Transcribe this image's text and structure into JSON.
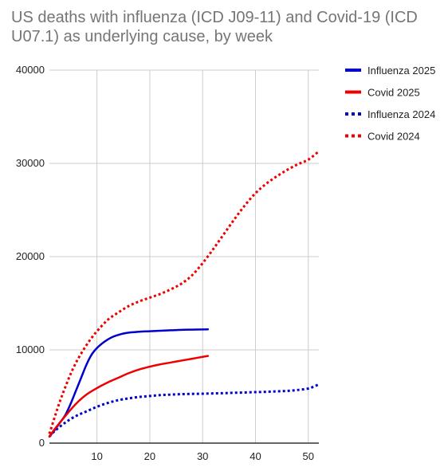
{
  "chart_data": {
    "type": "line",
    "title": "US deaths with influenza (ICD J09-11) and Covid-19 (ICD U07.1) as underlying cause, by week",
    "xlabel": "",
    "ylabel": "",
    "xlim": [
      1,
      52
    ],
    "ylim": [
      0,
      40000
    ],
    "x_ticks": [
      10,
      20,
      30,
      40,
      50
    ],
    "y_ticks": [
      0,
      10000,
      20000,
      30000,
      40000
    ],
    "grid": true,
    "legend_position": "right",
    "series": [
      {
        "name": "Influenza 2025",
        "color": "#0000cc",
        "style": "solid",
        "x": [
          1,
          2,
          3,
          4,
          5,
          6,
          7,
          8,
          9,
          10,
          11,
          12,
          13,
          14,
          15,
          16,
          17,
          18,
          20,
          22,
          24,
          26,
          28,
          30,
          31
        ],
        "y": [
          700,
          1400,
          2200,
          3000,
          4200,
          5600,
          7000,
          8400,
          9500,
          10200,
          10700,
          11100,
          11400,
          11600,
          11750,
          11850,
          11900,
          11950,
          12000,
          12050,
          12100,
          12150,
          12170,
          12190,
          12200
        ]
      },
      {
        "name": "Covid 2025",
        "color": "#ee0000",
        "style": "solid",
        "x": [
          1,
          2,
          4,
          6,
          8,
          10,
          12,
          14,
          16,
          18,
          20,
          22,
          24,
          26,
          28,
          30,
          31
        ],
        "y": [
          700,
          1500,
          2900,
          4200,
          5200,
          5900,
          6500,
          7000,
          7500,
          7900,
          8200,
          8450,
          8650,
          8850,
          9050,
          9250,
          9350
        ]
      },
      {
        "name": "Influenza 2024",
        "color": "#0000cc",
        "style": "dotted",
        "x": [
          1,
          2,
          4,
          6,
          8,
          10,
          12,
          14,
          16,
          18,
          20,
          22,
          24,
          26,
          28,
          30,
          32,
          34,
          36,
          38,
          40,
          42,
          44,
          46,
          48,
          50,
          51,
          52
        ],
        "y": [
          700,
          1300,
          2200,
          2900,
          3400,
          3900,
          4300,
          4600,
          4800,
          4950,
          5050,
          5150,
          5200,
          5250,
          5280,
          5300,
          5330,
          5360,
          5400,
          5430,
          5470,
          5500,
          5550,
          5600,
          5700,
          5850,
          6050,
          6300
        ]
      },
      {
        "name": "Covid 2024",
        "color": "#ee0000",
        "style": "dotted",
        "x": [
          1,
          2,
          3,
          4,
          5,
          6,
          7,
          8,
          9,
          10,
          12,
          14,
          16,
          18,
          20,
          22,
          24,
          26,
          28,
          30,
          32,
          34,
          36,
          38,
          40,
          42,
          44,
          46,
          48,
          50,
          52
        ],
        "y": [
          1000,
          2800,
          4500,
          6000,
          7400,
          8600,
          9600,
          10500,
          11300,
          12000,
          13200,
          14000,
          14700,
          15200,
          15600,
          16000,
          16500,
          17100,
          18000,
          19300,
          20800,
          22400,
          24000,
          25500,
          26800,
          27800,
          28600,
          29300,
          29900,
          30400,
          31300
        ]
      }
    ]
  }
}
